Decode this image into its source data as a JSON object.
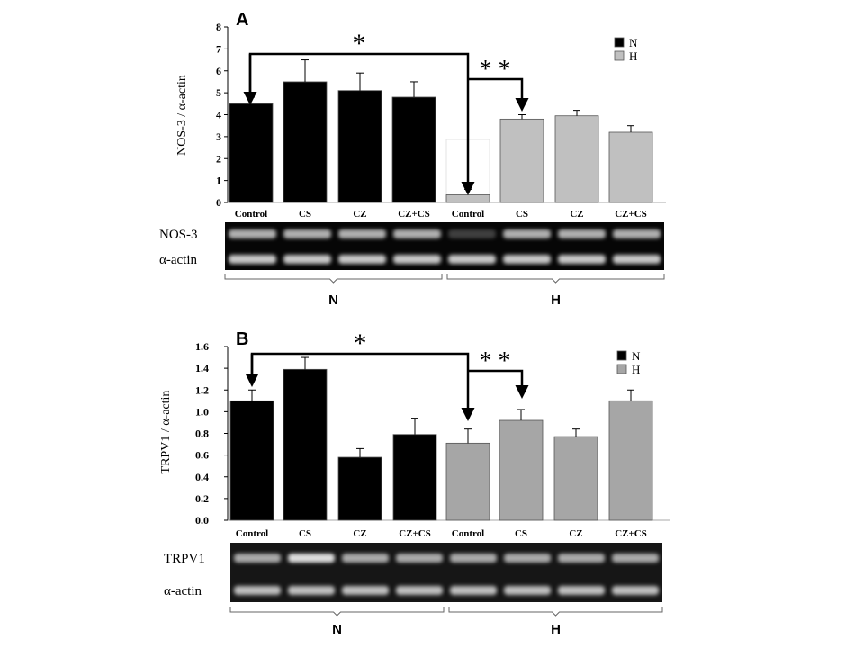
{
  "chart_data": [
    {
      "panel": "A",
      "type": "bar",
      "ylabel": "NOS-3 / α-actin",
      "ylim": [
        0,
        8
      ],
      "yticks": [
        0,
        1,
        2,
        3,
        4,
        5,
        6,
        7,
        8
      ],
      "ytick_labels": [
        "0",
        "1",
        "2",
        "3",
        "4",
        "5",
        "6",
        "7",
        "8"
      ],
      "categories": [
        "Control",
        "CS",
        "CZ",
        "CZ+CS",
        "Control",
        "CS",
        "CZ",
        "CZ+CS"
      ],
      "series": [
        {
          "name": "N",
          "color": "#000000",
          "values": [
            4.5,
            5.5,
            5.1,
            4.8,
            null,
            null,
            null,
            null
          ],
          "errors": [
            0.3,
            1.0,
            0.8,
            0.7,
            null,
            null,
            null,
            null
          ]
        },
        {
          "name": "H",
          "color": "#c0c0c0",
          "values": [
            null,
            null,
            null,
            null,
            0.35,
            3.8,
            3.95,
            3.2
          ],
          "errors": [
            null,
            null,
            null,
            null,
            0.25,
            0.2,
            0.25,
            0.3
          ]
        }
      ],
      "legend": {
        "position": "top-right",
        "entries": [
          "N",
          "H"
        ]
      },
      "annotations": [
        "*",
        "* *"
      ],
      "blot_labels": [
        "NOS-3",
        "α-actin"
      ],
      "groups": [
        "N",
        "H"
      ]
    },
    {
      "panel": "B",
      "type": "bar",
      "ylabel": "TRPV1 / α-actin",
      "ylim": [
        0,
        1.6
      ],
      "yticks": [
        0,
        0.2,
        0.4,
        0.6,
        0.8,
        1.0,
        1.2,
        1.4,
        1.6
      ],
      "ytick_labels": [
        "0.0",
        "0.2",
        "0.4",
        "0.6",
        "0.8",
        "1.0",
        "1.2",
        "1.4",
        "1.6"
      ],
      "categories": [
        "Control",
        "CS",
        "CZ",
        "CZ+CS",
        "Control",
        "CS",
        "CZ",
        "CZ+CS"
      ],
      "series": [
        {
          "name": "N",
          "color": "#000000",
          "values": [
            1.1,
            1.39,
            0.58,
            0.79,
            null,
            null,
            null,
            null
          ],
          "errors": [
            0.1,
            0.11,
            0.08,
            0.15,
            null,
            null,
            null,
            null
          ]
        },
        {
          "name": "H",
          "color": "#a6a6a6",
          "values": [
            null,
            null,
            null,
            null,
            0.71,
            0.92,
            0.77,
            1.1
          ],
          "errors": [
            null,
            null,
            null,
            null,
            0.13,
            0.1,
            0.07,
            0.1
          ]
        }
      ],
      "legend": {
        "position": "top-right",
        "entries": [
          "N",
          "H"
        ]
      },
      "annotations": [
        "*",
        "* *"
      ],
      "blot_labels": [
        "TRPV1",
        "α-actin"
      ],
      "groups": [
        "N",
        "H"
      ]
    }
  ]
}
